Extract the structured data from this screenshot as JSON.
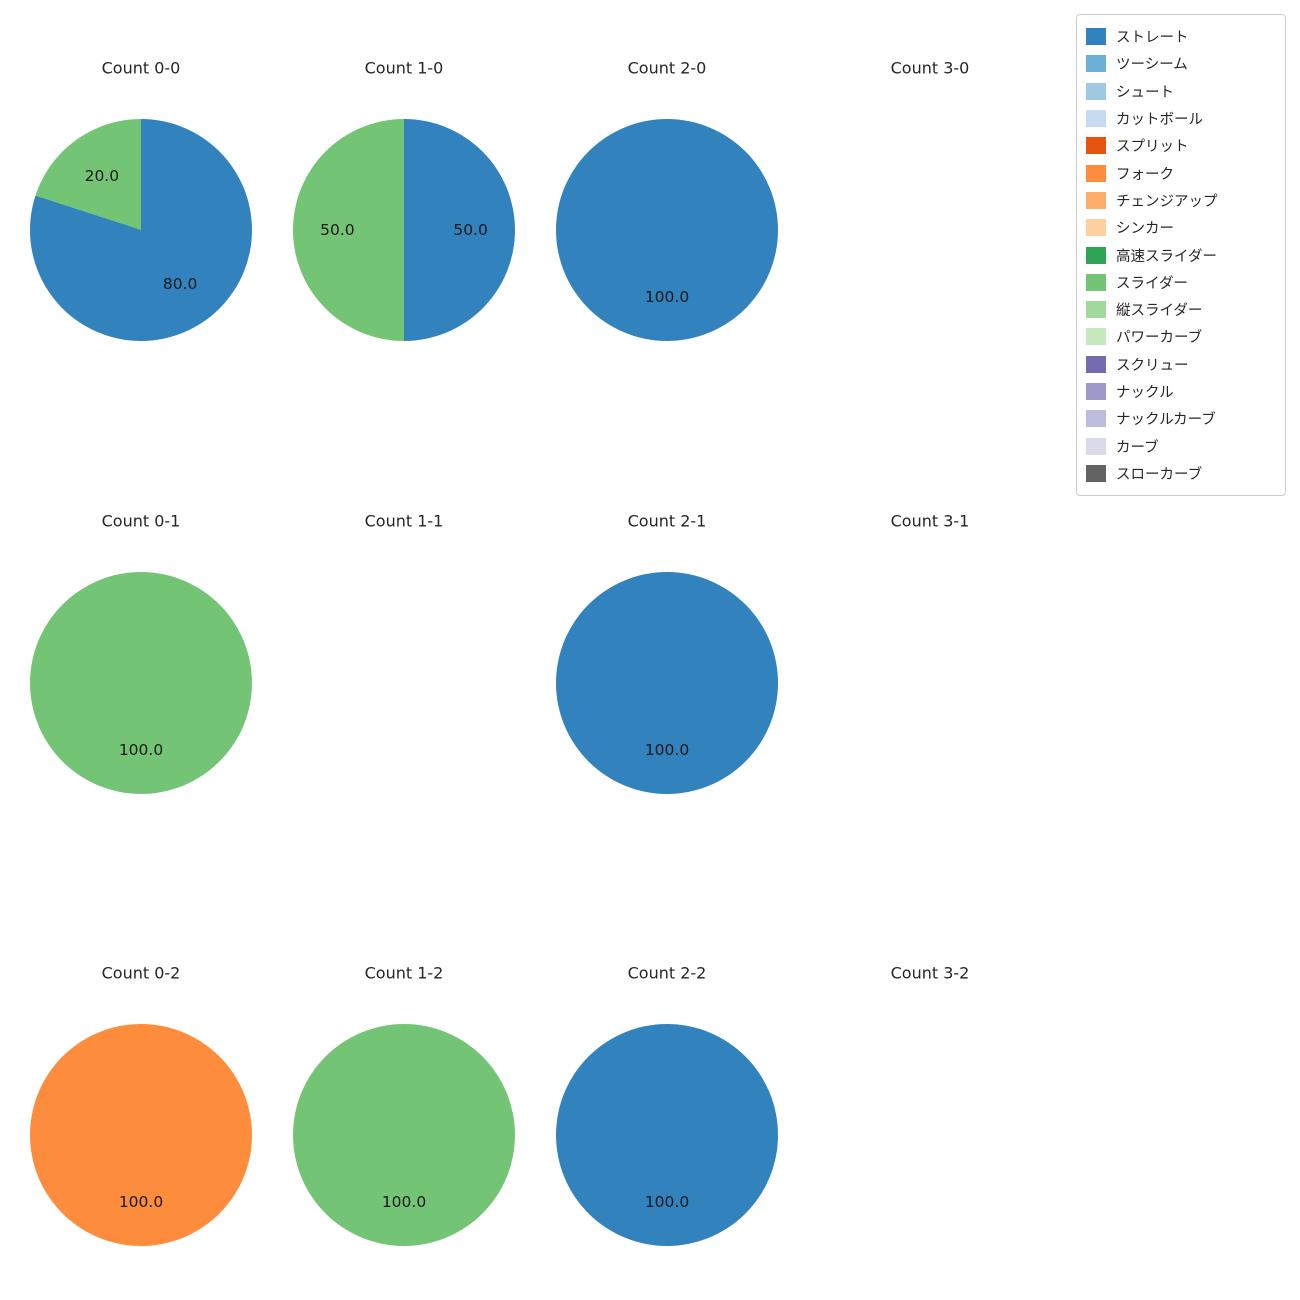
{
  "figure": {
    "background": "#ffffff"
  },
  "legend": {
    "items": [
      {
        "label": "ストレート",
        "color": "#3182bd"
      },
      {
        "label": "ツーシーム",
        "color": "#6baed6"
      },
      {
        "label": "シュート",
        "color": "#9ecae1"
      },
      {
        "label": "カットボール",
        "color": "#c6dbef"
      },
      {
        "label": "スプリット",
        "color": "#e6550d"
      },
      {
        "label": "フォーク",
        "color": "#fd8d3c"
      },
      {
        "label": "チェンジアップ",
        "color": "#fdae6b"
      },
      {
        "label": "シンカー",
        "color": "#fdd0a2"
      },
      {
        "label": "高速スライダー",
        "color": "#31a354"
      },
      {
        "label": "スライダー",
        "color": "#74c476"
      },
      {
        "label": "縦スライダー",
        "color": "#a1d99b"
      },
      {
        "label": "パワーカーブ",
        "color": "#c7e9c0"
      },
      {
        "label": "スクリュー",
        "color": "#756bb1"
      },
      {
        "label": "ナックル",
        "color": "#9e9ac8"
      },
      {
        "label": "ナックルカーブ",
        "color": "#bcbddc"
      },
      {
        "label": "カーブ",
        "color": "#dadaeb"
      },
      {
        "label": "スローカーブ",
        "color": "#636363"
      }
    ]
  },
  "chart_data": [
    {
      "type": "pie",
      "title": "Count 0-0",
      "start_angle_deg": 0,
      "direction": "clockwise",
      "slices": [
        {
          "label": "ストレート",
          "value": 80.0
        },
        {
          "label": "スライダー",
          "value": 20.0
        }
      ]
    },
    {
      "type": "pie",
      "title": "Count 1-0",
      "start_angle_deg": 0,
      "direction": "clockwise",
      "slices": [
        {
          "label": "ストレート",
          "value": 50.0
        },
        {
          "label": "スライダー",
          "value": 50.0
        }
      ]
    },
    {
      "type": "pie",
      "title": "Count 2-0",
      "start_angle_deg": 0,
      "direction": "clockwise",
      "slices": [
        {
          "label": "ストレート",
          "value": 100.0
        }
      ]
    },
    {
      "type": "pie",
      "title": "Count 3-0",
      "start_angle_deg": 0,
      "direction": "clockwise",
      "slices": []
    },
    {
      "type": "pie",
      "title": "Count 0-1",
      "start_angle_deg": 0,
      "direction": "clockwise",
      "slices": [
        {
          "label": "スライダー",
          "value": 100.0
        }
      ]
    },
    {
      "type": "pie",
      "title": "Count 1-1",
      "start_angle_deg": 0,
      "direction": "clockwise",
      "slices": []
    },
    {
      "type": "pie",
      "title": "Count 2-1",
      "start_angle_deg": 0,
      "direction": "clockwise",
      "slices": [
        {
          "label": "ストレート",
          "value": 100.0
        }
      ]
    },
    {
      "type": "pie",
      "title": "Count 3-1",
      "start_angle_deg": 0,
      "direction": "clockwise",
      "slices": []
    },
    {
      "type": "pie",
      "title": "Count 0-2",
      "start_angle_deg": 0,
      "direction": "clockwise",
      "slices": [
        {
          "label": "フォーク",
          "value": 100.0
        }
      ]
    },
    {
      "type": "pie",
      "title": "Count 1-2",
      "start_angle_deg": 0,
      "direction": "clockwise",
      "slices": [
        {
          "label": "スライダー",
          "value": 100.0
        }
      ]
    },
    {
      "type": "pie",
      "title": "Count 2-2",
      "start_angle_deg": 0,
      "direction": "clockwise",
      "slices": [
        {
          "label": "ストレート",
          "value": 100.0
        }
      ]
    },
    {
      "type": "pie",
      "title": "Count 3-2",
      "start_angle_deg": 0,
      "direction": "clockwise",
      "slices": []
    }
  ]
}
